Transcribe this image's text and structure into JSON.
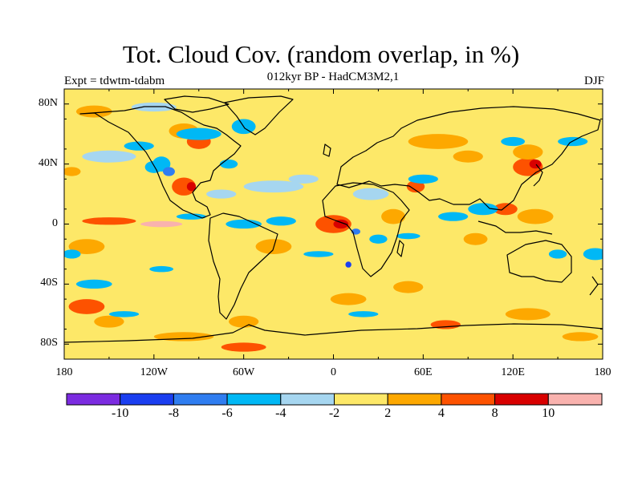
{
  "title": "Tot. Cloud Cov. (random overlap, in %)",
  "subtitle": "012kyr BP - HadCM3M2,1",
  "expt_label": "Expt = tdwtm-tdabm",
  "season_label": "DJF",
  "lat_ticks": [
    {
      "lat": 80,
      "label": "80N"
    },
    {
      "lat": 40,
      "label": "40N"
    },
    {
      "lat": 0,
      "label": "0"
    },
    {
      "lat": -40,
      "label": "40S"
    },
    {
      "lat": -80,
      "label": "80S"
    }
  ],
  "lon_ticks": [
    {
      "lon": -180,
      "label": "180"
    },
    {
      "lon": -120,
      "label": "120W"
    },
    {
      "lon": -60,
      "label": "60W"
    },
    {
      "lon": 0,
      "label": "0"
    },
    {
      "lon": 60,
      "label": "60E"
    },
    {
      "lon": 120,
      "label": "120E"
    },
    {
      "lon": 180,
      "label": "180"
    }
  ],
  "colorbar": {
    "colors": [
      "#7b2be0",
      "#1a3ef0",
      "#2f7df0",
      "#00b8f5",
      "#a6d6f0",
      "#fde868",
      "#fda800",
      "#fd5200",
      "#d80000",
      "#f9b2ae"
    ],
    "labels": [
      "-10",
      "-8",
      "-6",
      "-4",
      "-2",
      "2",
      "4",
      "8",
      "10"
    ]
  },
  "anomaly_regions": [
    {
      "lon": -160,
      "lat": 75,
      "rx": 12,
      "ry": 4,
      "level": 6
    },
    {
      "lon": -120,
      "lat": 78,
      "rx": 15,
      "ry": 3,
      "level": 4
    },
    {
      "lon": -100,
      "lat": 62,
      "rx": 10,
      "ry": 5,
      "level": 6
    },
    {
      "lon": -90,
      "lat": 55,
      "rx": 8,
      "ry": 5,
      "level": 7
    },
    {
      "lon": -60,
      "lat": 65,
      "rx": 8,
      "ry": 5,
      "level": 3
    },
    {
      "lon": -150,
      "lat": 45,
      "rx": 18,
      "ry": 4,
      "level": 4
    },
    {
      "lon": -120,
      "lat": 38,
      "rx": 6,
      "ry": 4,
      "level": 3
    },
    {
      "lon": -100,
      "lat": 25,
      "rx": 8,
      "ry": 6,
      "level": 7
    },
    {
      "lon": -95,
      "lat": 25,
      "rx": 3,
      "ry": 3,
      "level": 8
    },
    {
      "lon": -40,
      "lat": 25,
      "rx": 20,
      "ry": 4,
      "level": 4
    },
    {
      "lon": -20,
      "lat": 30,
      "rx": 10,
      "ry": 3,
      "level": 4
    },
    {
      "lon": -150,
      "lat": 2,
      "rx": 18,
      "ry": 2.5,
      "level": 7
    },
    {
      "lon": -115,
      "lat": 0,
      "rx": 14,
      "ry": 2,
      "level": 9
    },
    {
      "lon": -40,
      "lat": -15,
      "rx": 12,
      "ry": 5,
      "level": 6
    },
    {
      "lon": 0,
      "lat": 0,
      "rx": 12,
      "ry": 6,
      "level": 7
    },
    {
      "lon": 5,
      "lat": 0,
      "rx": 5,
      "ry": 3,
      "level": 8
    },
    {
      "lon": 40,
      "lat": 5,
      "rx": 8,
      "ry": 5,
      "level": 6
    },
    {
      "lon": 25,
      "lat": 20,
      "rx": 12,
      "ry": 4,
      "level": 4
    },
    {
      "lon": 55,
      "lat": 25,
      "rx": 6,
      "ry": 4,
      "level": 7
    },
    {
      "lon": 90,
      "lat": 45,
      "rx": 10,
      "ry": 4,
      "level": 6
    },
    {
      "lon": 130,
      "lat": 38,
      "rx": 10,
      "ry": 6,
      "level": 7
    },
    {
      "lon": 135,
      "lat": 40,
      "rx": 4,
      "ry": 3,
      "level": 8
    },
    {
      "lon": 130,
      "lat": 48,
      "rx": 10,
      "ry": 5,
      "level": 6
    },
    {
      "lon": 70,
      "lat": 55,
      "rx": 20,
      "ry": 5,
      "level": 6
    },
    {
      "lon": 135,
      "lat": 5,
      "rx": 12,
      "ry": 5,
      "level": 6
    },
    {
      "lon": 115,
      "lat": 10,
      "rx": 8,
      "ry": 4,
      "level": 7
    },
    {
      "lon": 95,
      "lat": -10,
      "rx": 8,
      "ry": 4,
      "level": 6
    },
    {
      "lon": -165,
      "lat": -15,
      "rx": 12,
      "ry": 5,
      "level": 6
    },
    {
      "lon": -165,
      "lat": -55,
      "rx": 12,
      "ry": 5,
      "level": 7
    },
    {
      "lon": -150,
      "lat": -65,
      "rx": 10,
      "ry": 4,
      "level": 6
    },
    {
      "lon": -60,
      "lat": -65,
      "rx": 10,
      "ry": 4,
      "level": 6
    },
    {
      "lon": -100,
      "lat": -75,
      "rx": 20,
      "ry": 3,
      "level": 6
    },
    {
      "lon": -60,
      "lat": -82,
      "rx": 15,
      "ry": 3,
      "level": 7
    },
    {
      "lon": 10,
      "lat": -50,
      "rx": 12,
      "ry": 4,
      "level": 6
    },
    {
      "lon": 50,
      "lat": -42,
      "rx": 10,
      "ry": 4,
      "level": 6
    },
    {
      "lon": 75,
      "lat": -67,
      "rx": 10,
      "ry": 3,
      "level": 7
    },
    {
      "lon": 130,
      "lat": -60,
      "rx": 15,
      "ry": 4,
      "level": 6
    },
    {
      "lon": 165,
      "lat": -75,
      "rx": 12,
      "ry": 3,
      "level": 6
    },
    {
      "lon": -175,
      "lat": 35,
      "rx": 6,
      "ry": 3,
      "level": 6
    },
    {
      "lon": -130,
      "lat": 52,
      "rx": 10,
      "ry": 3,
      "level": 3
    },
    {
      "lon": -115,
      "lat": 40,
      "rx": 6,
      "ry": 5,
      "level": 3
    },
    {
      "lon": -75,
      "lat": 20,
      "rx": 10,
      "ry": 3,
      "level": 4
    },
    {
      "lon": -95,
      "lat": 5,
      "rx": 10,
      "ry": 2,
      "level": 3
    },
    {
      "lon": -60,
      "lat": 0,
      "rx": 12,
      "ry": 3,
      "level": 3
    },
    {
      "lon": -35,
      "lat": 2,
      "rx": 10,
      "ry": 3,
      "level": 3
    },
    {
      "lon": 30,
      "lat": -10,
      "rx": 6,
      "ry": 3,
      "level": 3
    },
    {
      "lon": 50,
      "lat": -8,
      "rx": 8,
      "ry": 2,
      "level": 3
    },
    {
      "lon": 80,
      "lat": 5,
      "rx": 10,
      "ry": 3,
      "level": 3
    },
    {
      "lon": 100,
      "lat": 10,
      "rx": 10,
      "ry": 4,
      "level": 3
    },
    {
      "lon": 60,
      "lat": 30,
      "rx": 10,
      "ry": 3,
      "level": 3
    },
    {
      "lon": 120,
      "lat": 55,
      "rx": 8,
      "ry": 3,
      "level": 3
    },
    {
      "lon": 160,
      "lat": 55,
      "rx": 10,
      "ry": 3,
      "level": 3
    },
    {
      "lon": -175,
      "lat": -20,
      "rx": 6,
      "ry": 3,
      "level": 3
    },
    {
      "lon": -160,
      "lat": -40,
      "rx": 12,
      "ry": 3,
      "level": 3
    },
    {
      "lon": -115,
      "lat": -30,
      "rx": 8,
      "ry": 2,
      "level": 3
    },
    {
      "lon": -10,
      "lat": -20,
      "rx": 10,
      "ry": 2,
      "level": 3
    },
    {
      "lon": 175,
      "lat": -20,
      "rx": 8,
      "ry": 4,
      "level": 3
    },
    {
      "lon": 150,
      "lat": -20,
      "rx": 6,
      "ry": 3,
      "level": 3
    },
    {
      "lon": -140,
      "lat": -60,
      "rx": 10,
      "ry": 2,
      "level": 3
    },
    {
      "lon": 20,
      "lat": -60,
      "rx": 10,
      "ry": 2,
      "level": 3
    },
    {
      "lon": -90,
      "lat": 60,
      "rx": 15,
      "ry": 4,
      "level": 3
    },
    {
      "lon": -70,
      "lat": 40,
      "rx": 6,
      "ry": 3,
      "level": 3
    },
    {
      "lon": -110,
      "lat": 35,
      "rx": 4,
      "ry": 3,
      "level": 2
    },
    {
      "lon": 15,
      "lat": -5,
      "rx": 3,
      "ry": 2,
      "level": 2
    },
    {
      "lon": 10,
      "lat": -27,
      "rx": 2,
      "ry": 2,
      "level": 1
    }
  ]
}
